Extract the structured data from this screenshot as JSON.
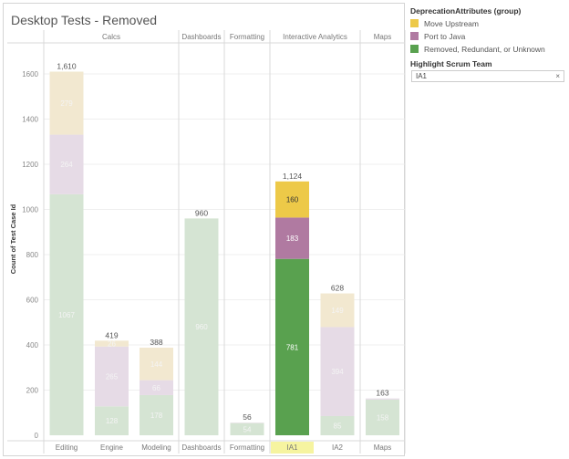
{
  "title": "Desktop Tests  - Removed",
  "legend": {
    "title": "DeprecationAttributes (group)",
    "items": [
      {
        "label": "Move Upstream",
        "color": "#edc948"
      },
      {
        "label": "Port to Java",
        "color": "#b07aa1"
      },
      {
        "label": "Removed, Redundant, or Unknown",
        "color": "#59a14f"
      }
    ]
  },
  "filter": {
    "title": "Highlight Scrum Team",
    "value": "IA1",
    "clear_icon": "×"
  },
  "chart_data": {
    "type": "bar",
    "stacked": true,
    "title": "Desktop Tests  - Removed",
    "ylabel": "Count of Test Case Id",
    "xlabel": "",
    "ylim": [
      0,
      1700
    ],
    "yticks": [
      0,
      200,
      400,
      600,
      800,
      1000,
      1200,
      1400,
      1600
    ],
    "grid": true,
    "legend_position": "right",
    "highlighted": "IA1",
    "groups": [
      {
        "name": "Calcs",
        "categories": [
          "Editing",
          "Engine",
          "Modeling"
        ]
      },
      {
        "name": "Dashboards",
        "categories": [
          "Dashboards"
        ]
      },
      {
        "name": "Formatting",
        "categories": [
          "Formatting"
        ]
      },
      {
        "name": "Interactive Analytics",
        "categories": [
          "IA1",
          "IA2"
        ]
      },
      {
        "name": "Maps",
        "categories": [
          "Maps"
        ]
      }
    ],
    "categories": [
      "Editing",
      "Engine",
      "Modeling",
      "Dashboards",
      "Formatting",
      "IA1",
      "IA2",
      "Maps"
    ],
    "series": [
      {
        "name": "Removed, Redundant, or Unknown",
        "color": "#59a14f",
        "faded": "#d5e4d3",
        "values": [
          1067,
          128,
          178,
          960,
          54,
          781,
          85,
          158
        ]
      },
      {
        "name": "Port to Java",
        "color": "#b07aa1",
        "faded": "#e6dbe6",
        "values": [
          264,
          265,
          66,
          0,
          2,
          183,
          394,
          5
        ]
      },
      {
        "name": "Move Upstream",
        "color": "#edc948",
        "faded": "#f2e8d0",
        "values": [
          279,
          26,
          144,
          0,
          0,
          160,
          149,
          0
        ]
      }
    ],
    "totals": [
      1610,
      419,
      388,
      960,
      56,
      1124,
      628,
      163
    ],
    "total_labels": [
      "1,610",
      "419",
      "388",
      "960",
      "56",
      "1,124",
      "628",
      "163"
    ]
  }
}
